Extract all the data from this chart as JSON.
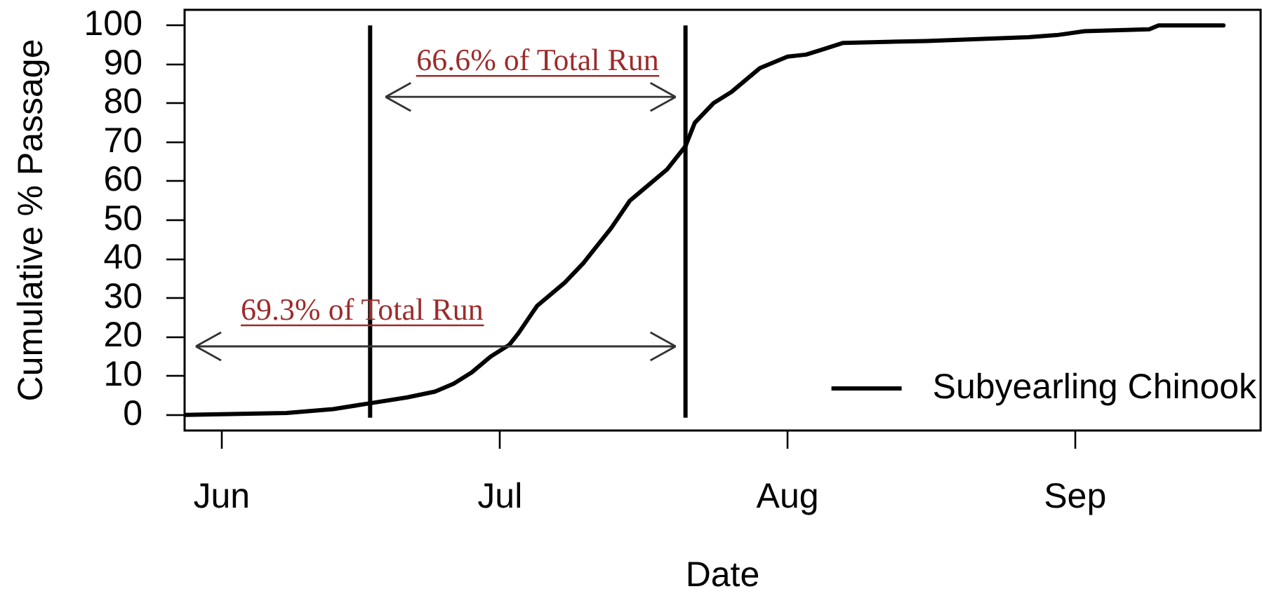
{
  "chart_data": {
    "type": "line",
    "xlabel": "Date",
    "ylabel": "Cumulative % Passage",
    "x": [
      "--05-28",
      "--06-08",
      "--06-13",
      "--06-17",
      "--06-21",
      "--06-24",
      "--06-26",
      "--06-28",
      "--06-30",
      "--07-02",
      "--07-03",
      "--07-05",
      "--07-08",
      "--07-10",
      "--07-11",
      "--07-13",
      "--07-15",
      "--07-16",
      "--07-19",
      "--07-21",
      "--07-22",
      "--07-24",
      "--07-26",
      "--07-29",
      "--08-01",
      "--08-03",
      "--08-05",
      "--08-07",
      "--08-16",
      "--08-27",
      "--08-30",
      "--09-02",
      "--09-09",
      "--09-10",
      "--09-17"
    ],
    "series": [
      {
        "name": "Subyearling Chinook",
        "color": "#000000",
        "values": [
          0,
          0.5,
          1.5,
          3,
          4.5,
          6,
          8,
          11,
          15,
          18,
          21,
          28,
          34,
          39,
          42,
          48,
          55,
          57,
          63,
          69,
          75,
          80,
          83,
          89,
          92,
          92.5,
          94,
          95.5,
          96,
          97,
          97.5,
          98.5,
          99,
          100,
          100
        ]
      }
    ],
    "xlim": [
      "--05-28",
      "--09-21"
    ],
    "xticks": [
      {
        "value": "--06-01",
        "label": "Jun"
      },
      {
        "value": "--07-01",
        "label": "Jul"
      },
      {
        "value": "--08-01",
        "label": "Aug"
      },
      {
        "value": "--09-01",
        "label": "Sep"
      }
    ],
    "ylim": [
      -4,
      104
    ],
    "yticks": [
      0,
      10,
      20,
      30,
      40,
      50,
      60,
      70,
      80,
      90,
      100
    ],
    "ref_lines": [
      {
        "axis": "x",
        "value": "--06-17",
        "color": "#000000"
      },
      {
        "axis": "x",
        "value": "--07-21",
        "color": "#000000"
      }
    ],
    "annotations": [
      "66.6% of Total Run",
      "69.3% of Total Run"
    ],
    "legend": "bottom right",
    "marker": "none",
    "line_style": "solid"
  }
}
